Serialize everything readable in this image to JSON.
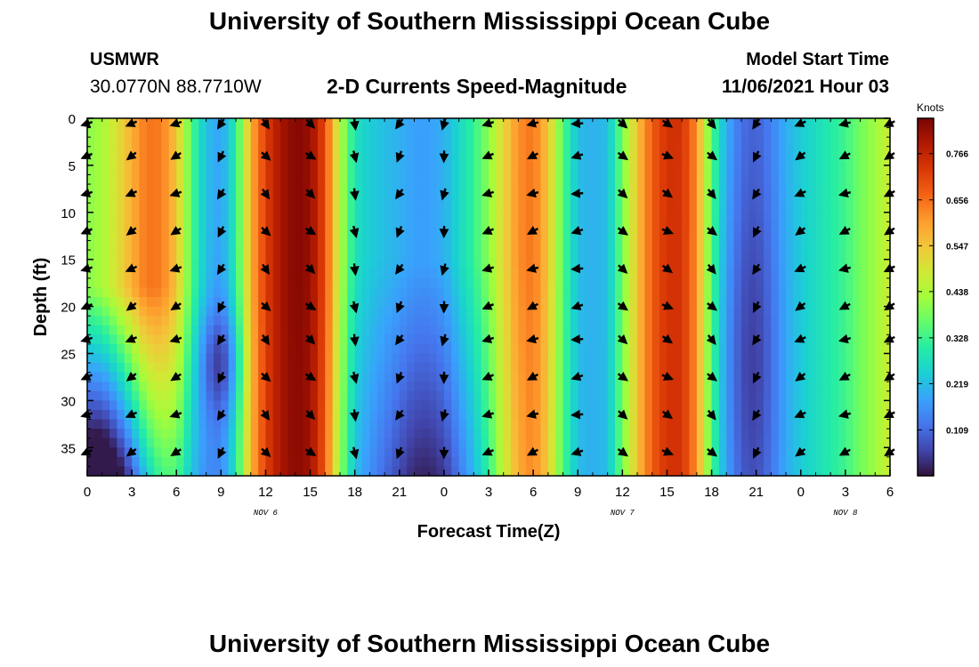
{
  "header": {
    "title": "University of Southern Mississippi Ocean Cube",
    "station": "USMWR",
    "coords": "30.0770N  88.7710W",
    "subtitle": "2-D Currents Speed-Magnitude",
    "model_start_label": "Model Start Time",
    "model_start_value": "11/06/2021 Hour 03"
  },
  "footer": {
    "title": "University of Southern Mississippi Ocean Cube"
  },
  "chart_data": {
    "type": "heatmap",
    "title": "2-D Currents Speed-Magnitude",
    "xlabel": "Forecast Time(Z)",
    "ylabel": "Depth (ft)",
    "x_range_hours": [
      0,
      54
    ],
    "x_tick_labels": [
      "0",
      "3",
      "6",
      "9",
      "12",
      "15",
      "18",
      "21",
      "0",
      "3",
      "6",
      "9",
      "12",
      "15",
      "18",
      "21",
      "0",
      "3",
      "6"
    ],
    "date_labels": [
      {
        "hour": 12,
        "text": "NOV 6"
      },
      {
        "hour": 36,
        "text": "NOV 7"
      },
      {
        "hour": 51,
        "text": "NOV 8"
      }
    ],
    "y_range": [
      0,
      38
    ],
    "y_ticks": [
      0,
      5,
      10,
      15,
      20,
      25,
      30,
      35
    ],
    "colorbar": {
      "label": "Knots",
      "min": 0.0,
      "max": 0.85,
      "ticks": [
        "0.109",
        "0.219",
        "0.328",
        "0.438",
        "0.547",
        "0.656",
        "0.766"
      ],
      "colors": [
        "#30123b",
        "#4145ab",
        "#4675ed",
        "#39a2fc",
        "#1bcfd4",
        "#24eca6",
        "#61fc6c",
        "#a4fc3b",
        "#d1e834",
        "#f3c63a",
        "#fe9b2d",
        "#f36315",
        "#d93806",
        "#b11901",
        "#7a0403"
      ]
    },
    "time_profile_surface_knots": [
      {
        "h": 0,
        "v": 0.4
      },
      {
        "h": 1,
        "v": 0.43
      },
      {
        "h": 2,
        "v": 0.5
      },
      {
        "h": 3,
        "v": 0.58
      },
      {
        "h": 4,
        "v": 0.65
      },
      {
        "h": 5,
        "v": 0.64
      },
      {
        "h": 6,
        "v": 0.55
      },
      {
        "h": 7,
        "v": 0.35
      },
      {
        "h": 8,
        "v": 0.22
      },
      {
        "h": 9,
        "v": 0.18
      },
      {
        "h": 10,
        "v": 0.3
      },
      {
        "h": 11,
        "v": 0.58
      },
      {
        "h": 12,
        "v": 0.72
      },
      {
        "h": 13,
        "v": 0.8
      },
      {
        "h": 14,
        "v": 0.84
      },
      {
        "h": 15,
        "v": 0.82
      },
      {
        "h": 16,
        "v": 0.7
      },
      {
        "h": 17,
        "v": 0.45
      },
      {
        "h": 18,
        "v": 0.28
      },
      {
        "h": 19,
        "v": 0.24
      },
      {
        "h": 20,
        "v": 0.22
      },
      {
        "h": 21,
        "v": 0.2
      },
      {
        "h": 22,
        "v": 0.18
      },
      {
        "h": 23,
        "v": 0.18
      },
      {
        "h": 24,
        "v": 0.2
      },
      {
        "h": 25,
        "v": 0.26
      },
      {
        "h": 26,
        "v": 0.32
      },
      {
        "h": 27,
        "v": 0.4
      },
      {
        "h": 28,
        "v": 0.52
      },
      {
        "h": 29,
        "v": 0.62
      },
      {
        "h": 30,
        "v": 0.65
      },
      {
        "h": 31,
        "v": 0.55
      },
      {
        "h": 32,
        "v": 0.35
      },
      {
        "h": 33,
        "v": 0.22
      },
      {
        "h": 34,
        "v": 0.2
      },
      {
        "h": 35,
        "v": 0.22
      },
      {
        "h": 36,
        "v": 0.38
      },
      {
        "h": 37,
        "v": 0.55
      },
      {
        "h": 38,
        "v": 0.68
      },
      {
        "h": 39,
        "v": 0.74
      },
      {
        "h": 40,
        "v": 0.74
      },
      {
        "h": 41,
        "v": 0.62
      },
      {
        "h": 42,
        "v": 0.35
      },
      {
        "h": 43,
        "v": 0.2
      },
      {
        "h": 44,
        "v": 0.12
      },
      {
        "h": 45,
        "v": 0.1
      },
      {
        "h": 46,
        "v": 0.14
      },
      {
        "h": 47,
        "v": 0.2
      },
      {
        "h": 48,
        "v": 0.24
      },
      {
        "h": 49,
        "v": 0.27
      },
      {
        "h": 50,
        "v": 0.3
      },
      {
        "h": 51,
        "v": 0.33
      },
      {
        "h": 52,
        "v": 0.38
      },
      {
        "h": 53,
        "v": 0.42
      },
      {
        "h": 54,
        "v": 0.48
      }
    ],
    "arrows": {
      "x_hours": [
        0,
        3,
        6,
        9,
        12,
        15,
        18,
        21,
        24,
        27,
        30,
        33,
        36,
        39,
        42,
        45,
        48,
        51,
        54
      ],
      "depths": [
        0,
        4,
        8,
        12,
        16,
        20,
        23.5,
        27.5,
        31.5,
        35.5
      ],
      "direction_deg_by_hour": [
        -160,
        -150,
        -155,
        -120,
        -50,
        -40,
        -80,
        -120,
        -100,
        -160,
        -160,
        -170,
        -40,
        -30,
        -45,
        -120,
        -150,
        -160,
        -150
      ]
    }
  }
}
